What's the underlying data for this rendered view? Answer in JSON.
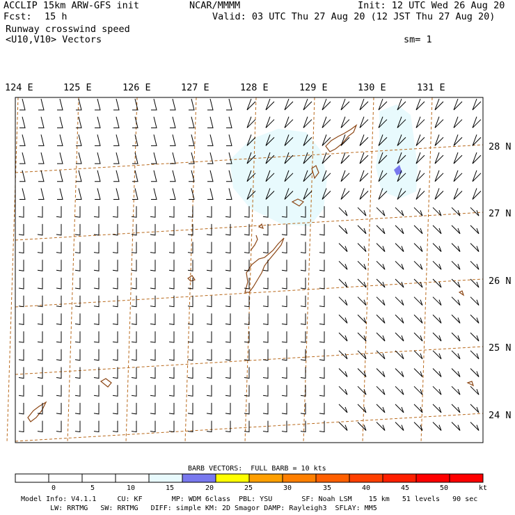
{
  "header": {
    "title_left": "ACCLIP 15km ARW-GFS init",
    "forecast_label": "Fcst:",
    "forecast_value": "15 h",
    "field_name": "Runway crosswind speed",
    "vector_name": "<U10,V10> Vectors",
    "center": "NCAR/MMMM",
    "init": "Init: 12 UTC Wed 26 Aug 20",
    "valid": "Valid: 03 UTC Thu 27 Aug 20 (12 JST Thu 27 Aug 20)",
    "smoothing": "sm= 1"
  },
  "map": {
    "lon_labels": [
      "124 E",
      "125 E",
      "126 E",
      "127 E",
      "128 E",
      "129 E",
      "130 E",
      "131 E"
    ],
    "lat_labels": [
      "28 N",
      "27 N",
      "26 N",
      "25 N",
      "24 N"
    ],
    "colors": {
      "frame": "#000000",
      "grid": "#b8681a",
      "coast": "#8b4513",
      "barb": "#000000",
      "shade_light": "#e8fafd",
      "shade_blue": "#7878ee"
    }
  },
  "legend": {
    "title": "BARB VECTORS:  FULL BARB = 10 kts",
    "unit": "kt",
    "ticks": [
      "0",
      "5",
      "10",
      "15",
      "20",
      "25",
      "30",
      "35",
      "40",
      "45",
      "50"
    ],
    "bins": [
      {
        "color": "#ffffff"
      },
      {
        "color": "#ffffff"
      },
      {
        "color": "#ffffff"
      },
      {
        "color": "#ffffff"
      },
      {
        "color": "#e8fafd"
      },
      {
        "color": "#7878ee"
      },
      {
        "color": "#ffff00"
      },
      {
        "color": "#ff9f00"
      },
      {
        "color": "#ff7f00"
      },
      {
        "color": "#ff5f00"
      },
      {
        "color": "#ff3f00"
      },
      {
        "color": "#ff1f00"
      },
      {
        "color": "#ff0000"
      },
      {
        "color": "#ff0000"
      }
    ]
  },
  "footer": {
    "line1": "Model Info: V4.1.1     CU: KF       MP: WDM 6class  PBL: YSU       SF: Noah LSM    15 km   51 levels   90 sec",
    "line2": "       LW: RRTMG   SW: RRTMG   DIFF: simple KM: 2D Smagor DAMP: Rayleigh3  SFLAY: MM5"
  }
}
